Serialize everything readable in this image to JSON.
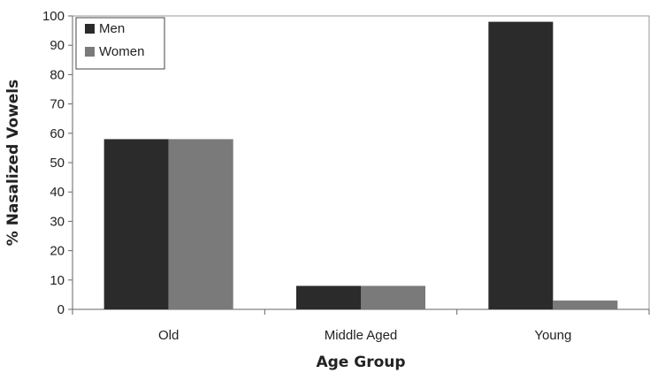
{
  "chart_data": {
    "type": "bar",
    "title": "",
    "xlabel": "Age Group",
    "ylabel": "% Nasalized Vowels",
    "categories": [
      "Old",
      "Middle Aged",
      "Young"
    ],
    "series": [
      {
        "name": "Men",
        "color": "#2b2b2b",
        "values": [
          58,
          8,
          98
        ]
      },
      {
        "name": "Women",
        "color": "#7a7a7a",
        "values": [
          58,
          8,
          3
        ]
      }
    ],
    "ylim": [
      0,
      100
    ],
    "yticks": [
      0,
      10,
      20,
      30,
      40,
      50,
      60,
      70,
      80,
      90,
      100
    ],
    "ytick_labels": [
      "0",
      "10",
      "20",
      "30",
      "40",
      "50",
      "60",
      "70",
      "80",
      "90",
      "100"
    ],
    "grid": false,
    "legend_position": "top-left"
  }
}
